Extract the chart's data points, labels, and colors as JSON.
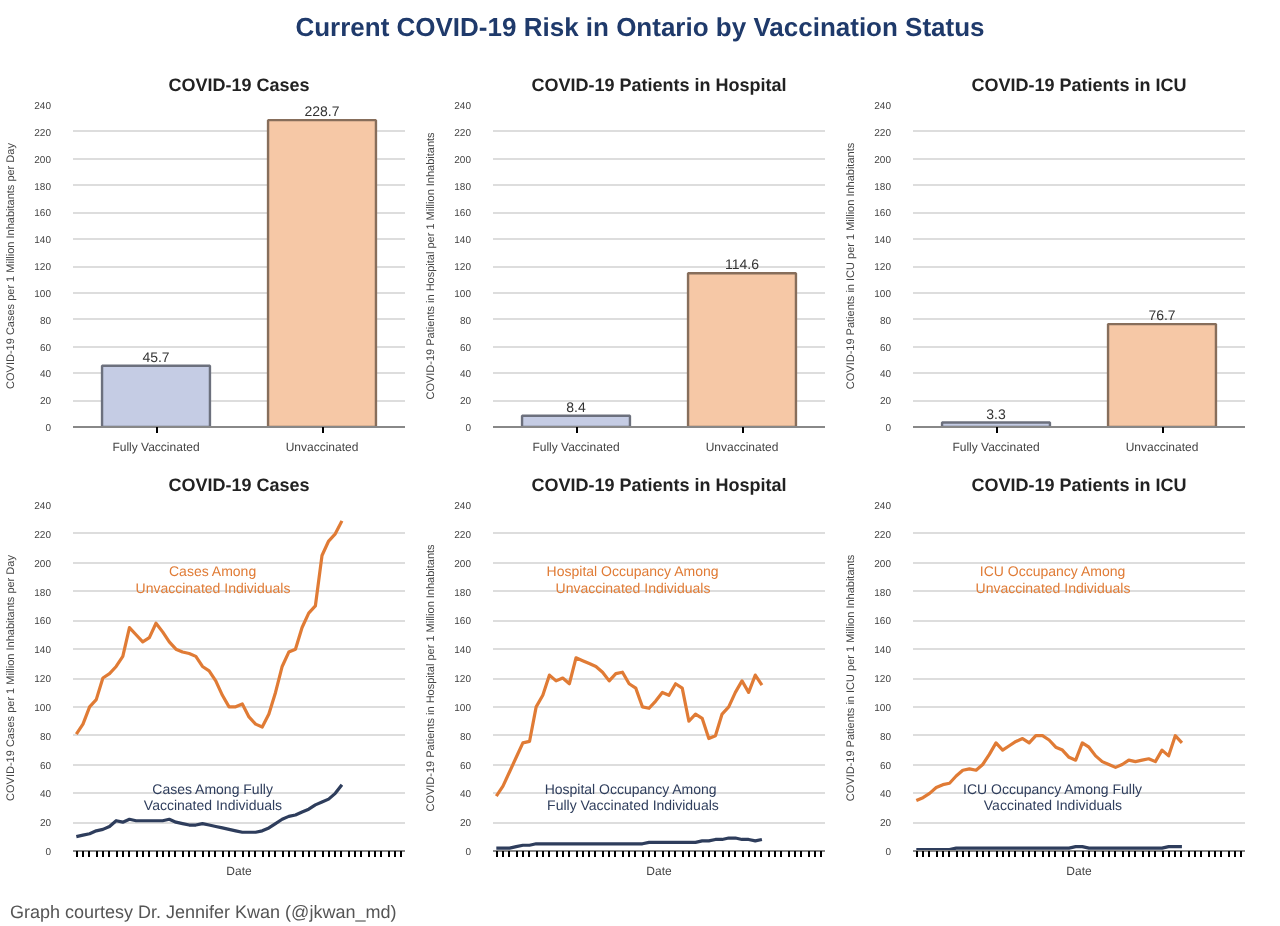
{
  "chart_data": [
    {
      "type": "other",
      "title": "Current COVID-19 Risk in Ontario by Vaccination Status",
      "annotations": [
        "Graph courtesy Dr. Jennifer Kwan (@jkwan_md)"
      ]
    },
    {
      "type": "bar",
      "title": "COVID-19 Cases",
      "ylabel": "COVID-19 Cases per 1 Million Inhabitants per Day",
      "categories": [
        "Fully Vaccinated",
        "Unvaccinated"
      ],
      "values": [
        45.7,
        228.7
      ],
      "colors": [
        "#c5cce4",
        "#f6c8a6"
      ],
      "data_labels": true,
      "ylim": [
        0,
        240
      ],
      "yticks": [
        0,
        20,
        40,
        60,
        80,
        100,
        120,
        140,
        160,
        180,
        200,
        220,
        240
      ],
      "grid": "y"
    },
    {
      "type": "bar",
      "title": "COVID-19 Patients in Hospital",
      "ylabel": "COVID-19 Patients in Hospital per 1 Million Inhabitants",
      "categories": [
        "Fully Vaccinated",
        "Unvaccinated"
      ],
      "values": [
        8.4,
        114.6
      ],
      "colors": [
        "#c5cce4",
        "#f6c8a6"
      ],
      "data_labels": true,
      "ylim": [
        0,
        240
      ],
      "yticks": [
        0,
        20,
        40,
        60,
        80,
        100,
        120,
        140,
        160,
        180,
        200,
        220,
        240
      ],
      "grid": "y"
    },
    {
      "type": "bar",
      "title": "COVID-19 Patients in ICU",
      "ylabel": "COVID-19 Patients in ICU per 1 Million Inhabitants",
      "categories": [
        "Fully Vaccinated",
        "Unvaccinated"
      ],
      "values": [
        3.3,
        76.7
      ],
      "colors": [
        "#c5cce4",
        "#f6c8a6"
      ],
      "data_labels": true,
      "ylim": [
        0,
        240
      ],
      "yticks": [
        0,
        20,
        40,
        60,
        80,
        100,
        120,
        140,
        160,
        180,
        200,
        220,
        240
      ],
      "grid": "y"
    },
    {
      "type": "line",
      "title": "COVID-19 Cases",
      "xlabel": "Date",
      "ylabel": "COVID-19 Cases per 1 Million Inhabitants per Day",
      "categories": [
        null,
        null,
        null,
        null,
        null,
        null,
        null,
        null,
        null,
        null,
        null,
        null,
        null,
        null,
        null,
        null,
        null,
        null,
        null,
        null,
        null,
        null,
        null,
        null,
        null,
        null,
        null,
        null,
        null,
        null,
        null,
        null,
        null,
        null,
        null,
        null,
        null,
        null,
        null,
        null,
        null,
        null,
        null,
        null,
        null,
        null,
        null,
        null,
        null,
        null
      ],
      "ylim": [
        0,
        240
      ],
      "yticks": [
        0,
        20,
        40,
        60,
        80,
        100,
        120,
        140,
        160,
        180,
        200,
        220,
        240
      ],
      "grid": "y",
      "series": [
        {
          "name": "Cases Among\nUnvaccinated Individuals",
          "color": "#e07b35",
          "values": [
            81,
            88,
            100,
            105,
            120,
            123,
            128,
            135,
            155,
            150,
            145,
            148,
            158,
            152,
            145,
            140,
            138,
            137,
            135,
            128,
            125,
            118,
            108,
            100,
            100,
            102,
            93,
            88,
            86,
            95,
            110,
            128,
            138,
            140,
            155,
            165,
            170,
            205,
            215,
            220,
            229,
            null,
            null,
            null,
            null,
            null,
            null,
            null,
            null,
            null
          ]
        },
        {
          "name": "Cases Among Fully\nVaccinated Individuals",
          "color": "#2e3d5c",
          "values": [
            10,
            11,
            12,
            14,
            15,
            17,
            21,
            20,
            22,
            21,
            21,
            21,
            21,
            21,
            22,
            20,
            19,
            18,
            18,
            19,
            18,
            17,
            16,
            15,
            14,
            13,
            13,
            13,
            14,
            16,
            19,
            22,
            24,
            25,
            27,
            29,
            32,
            34,
            36,
            40,
            46,
            null,
            null,
            null,
            null,
            null,
            null,
            null,
            null,
            null
          ]
        }
      ]
    },
    {
      "type": "line",
      "title": "COVID-19 Patients in Hospital",
      "xlabel": "Date",
      "ylabel": "COVID-19 Patients in Hospital per 1 Million Inhabitants",
      "categories": [
        null,
        null,
        null,
        null,
        null,
        null,
        null,
        null,
        null,
        null,
        null,
        null,
        null,
        null,
        null,
        null,
        null,
        null,
        null,
        null,
        null,
        null,
        null,
        null,
        null,
        null,
        null,
        null,
        null,
        null,
        null,
        null,
        null,
        null,
        null,
        null,
        null,
        null,
        null,
        null,
        null,
        null,
        null,
        null,
        null,
        null,
        null,
        null,
        null,
        null
      ],
      "ylim": [
        0,
        240
      ],
      "yticks": [
        0,
        20,
        40,
        60,
        80,
        100,
        120,
        140,
        160,
        180,
        200,
        220,
        240
      ],
      "grid": "y",
      "series": [
        {
          "name": "Hospital Occupancy Among\nUnvaccinated Individuals",
          "color": "#e07b35",
          "values": [
            38,
            45,
            55,
            65,
            75,
            76,
            100,
            108,
            122,
            118,
            120,
            116,
            134,
            132,
            130,
            128,
            124,
            118,
            123,
            124,
            116,
            113,
            100,
            99,
            104,
            110,
            108,
            116,
            113,
            90,
            95,
            92,
            78,
            80,
            95,
            100,
            110,
            118,
            110,
            122,
            115,
            null,
            null,
            null,
            null,
            null,
            null,
            null,
            null,
            null
          ]
        },
        {
          "name": "Hospital Occupancy  Among\nFully Vaccinated Individuals",
          "color": "#2e3d5c",
          "values": [
            2,
            2,
            2,
            3,
            4,
            4,
            5,
            5,
            5,
            5,
            5,
            5,
            5,
            5,
            5,
            5,
            5,
            5,
            5,
            5,
            5,
            5,
            5,
            6,
            6,
            6,
            6,
            6,
            6,
            6,
            6,
            7,
            7,
            8,
            8,
            9,
            9,
            8,
            8,
            7,
            8,
            null,
            null,
            null,
            null,
            null,
            null,
            null,
            null,
            null
          ]
        }
      ]
    },
    {
      "type": "line",
      "title": "COVID-19 Patients in ICU",
      "xlabel": "Date",
      "ylabel": "COVID-19 Patients in ICU per 1 Million Inhabitants",
      "categories": [
        null,
        null,
        null,
        null,
        null,
        null,
        null,
        null,
        null,
        null,
        null,
        null,
        null,
        null,
        null,
        null,
        null,
        null,
        null,
        null,
        null,
        null,
        null,
        null,
        null,
        null,
        null,
        null,
        null,
        null,
        null,
        null,
        null,
        null,
        null,
        null,
        null,
        null,
        null,
        null,
        null,
        null,
        null,
        null,
        null,
        null,
        null,
        null,
        null,
        null
      ],
      "ylim": [
        0,
        240
      ],
      "yticks": [
        0,
        20,
        40,
        60,
        80,
        100,
        120,
        140,
        160,
        180,
        200,
        220,
        240
      ],
      "grid": "y",
      "series": [
        {
          "name": "ICU Occupancy Among\nUnvaccinated Individuals",
          "color": "#e07b35",
          "values": [
            35,
            37,
            40,
            44,
            46,
            47,
            52,
            56,
            57,
            56,
            60,
            67,
            75,
            70,
            73,
            76,
            78,
            75,
            80,
            80,
            77,
            72,
            70,
            65,
            63,
            75,
            72,
            66,
            62,
            60,
            58,
            60,
            63,
            62,
            63,
            64,
            62,
            70,
            66,
            80,
            75,
            null,
            null,
            null,
            null,
            null,
            null,
            null,
            null,
            null
          ]
        },
        {
          "name": "ICU Occupancy Among Fully\nVaccinated Individuals",
          "color": "#2e3d5c",
          "values": [
            1,
            1,
            1,
            1,
            1,
            1,
            2,
            2,
            2,
            2,
            2,
            2,
            2,
            2,
            2,
            2,
            2,
            2,
            2,
            2,
            2,
            2,
            2,
            2,
            3,
            3,
            2,
            2,
            2,
            2,
            2,
            2,
            2,
            2,
            2,
            2,
            2,
            2,
            3,
            3,
            3,
            null,
            null,
            null,
            null,
            null,
            null,
            null,
            null,
            null
          ]
        }
      ]
    }
  ]
}
